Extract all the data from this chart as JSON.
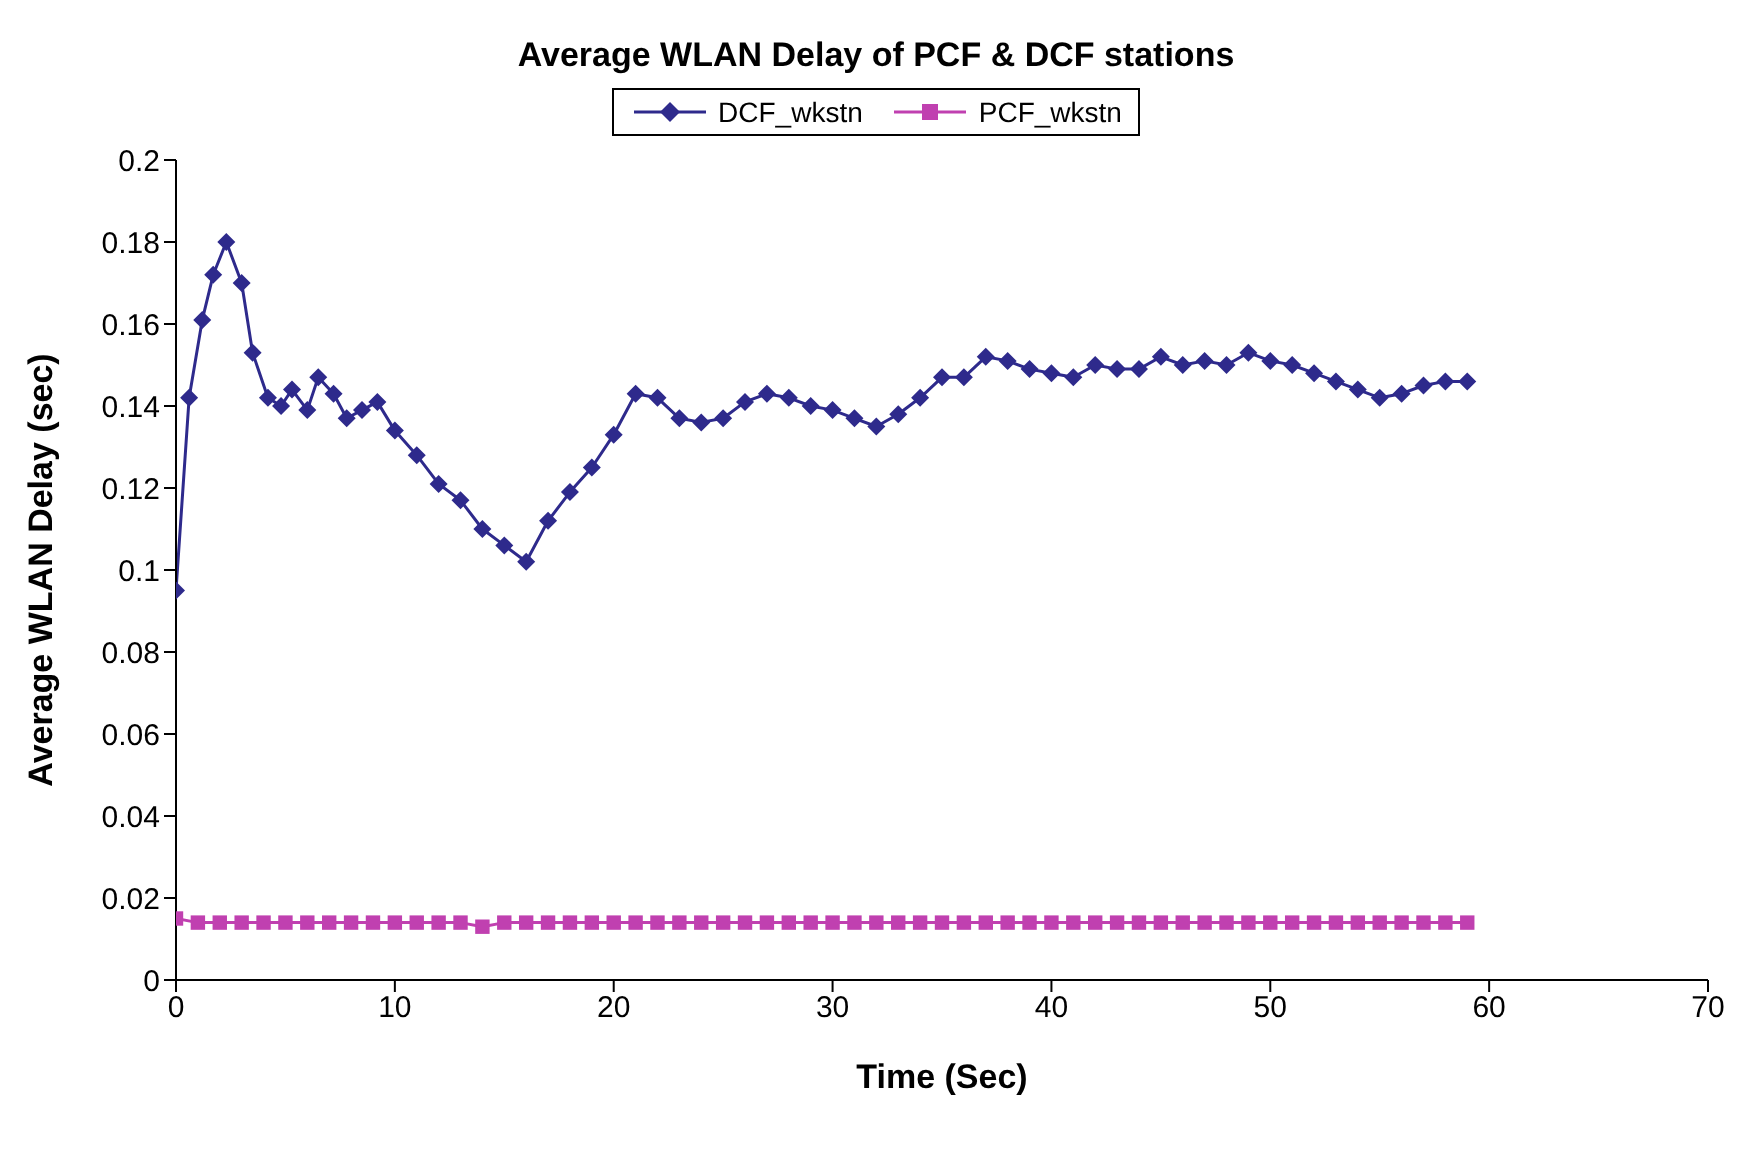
{
  "chart_data": {
    "type": "line",
    "title": "Average WLAN Delay of PCF & DCF stations",
    "xlabel": "Time (Sec)",
    "ylabel": "Average WLAN Delay (sec)",
    "xlim": [
      0,
      70
    ],
    "xticks": [
      0,
      10,
      20,
      30,
      40,
      50,
      60,
      70
    ],
    "ylim": [
      0,
      0.2
    ],
    "yticks": [
      0,
      0.02,
      0.04,
      0.06,
      0.08,
      0.1,
      0.12,
      0.14,
      0.16,
      0.18,
      0.2
    ],
    "grid": false,
    "legend": "top",
    "line_style": "solid",
    "series": [
      {
        "name": "DCF_wkstn",
        "color": "#2e2a8c",
        "marker": "diamond",
        "x": [
          0,
          0.6,
          1.2,
          1.7,
          2.3,
          3,
          3.5,
          4.2,
          4.8,
          5.3,
          6,
          6.5,
          7.2,
          7.8,
          8.5,
          9.2,
          10,
          11,
          12,
          13,
          14,
          15,
          16,
          17,
          18,
          19,
          20,
          21,
          22,
          23,
          24,
          25,
          26,
          27,
          28,
          29,
          30,
          31,
          32,
          33,
          34,
          35,
          36,
          37,
          38,
          39,
          40,
          41,
          42,
          43,
          44,
          45,
          46,
          47,
          48,
          49,
          50,
          51,
          52,
          53,
          54,
          55,
          56,
          57,
          58,
          59
        ],
        "values": [
          0.095,
          0.142,
          0.161,
          0.172,
          0.18,
          0.17,
          0.153,
          0.142,
          0.14,
          0.144,
          0.139,
          0.147,
          0.143,
          0.137,
          0.139,
          0.141,
          0.134,
          0.128,
          0.121,
          0.117,
          0.11,
          0.106,
          0.102,
          0.112,
          0.119,
          0.125,
          0.133,
          0.143,
          0.142,
          0.137,
          0.136,
          0.137,
          0.141,
          0.143,
          0.142,
          0.14,
          0.139,
          0.137,
          0.135,
          0.138,
          0.142,
          0.147,
          0.147,
          0.152,
          0.151,
          0.149,
          0.148,
          0.147,
          0.15,
          0.149,
          0.149,
          0.152,
          0.15,
          0.151,
          0.15,
          0.153,
          0.151,
          0.15,
          0.148,
          0.146,
          0.144,
          0.142,
          0.143,
          0.145,
          0.146,
          0.146
        ]
      },
      {
        "name": "PCF_wkstn",
        "color": "#c040b0",
        "marker": "square",
        "x": [
          0,
          1,
          2,
          3,
          4,
          5,
          6,
          7,
          8,
          9,
          10,
          11,
          12,
          13,
          14,
          15,
          16,
          17,
          18,
          19,
          20,
          21,
          22,
          23,
          24,
          25,
          26,
          27,
          28,
          29,
          30,
          31,
          32,
          33,
          34,
          35,
          36,
          37,
          38,
          39,
          40,
          41,
          42,
          43,
          44,
          45,
          46,
          47,
          48,
          49,
          50,
          51,
          52,
          53,
          54,
          55,
          56,
          57,
          58,
          59
        ],
        "values": [
          0.015,
          0.014,
          0.014,
          0.014,
          0.014,
          0.014,
          0.014,
          0.014,
          0.014,
          0.014,
          0.014,
          0.014,
          0.014,
          0.014,
          0.013,
          0.014,
          0.014,
          0.014,
          0.014,
          0.014,
          0.014,
          0.014,
          0.014,
          0.014,
          0.014,
          0.014,
          0.014,
          0.014,
          0.014,
          0.014,
          0.014,
          0.014,
          0.014,
          0.014,
          0.014,
          0.014,
          0.014,
          0.014,
          0.014,
          0.014,
          0.014,
          0.014,
          0.014,
          0.014,
          0.014,
          0.014,
          0.014,
          0.014,
          0.014,
          0.014,
          0.014,
          0.014,
          0.014,
          0.014,
          0.014,
          0.014,
          0.014,
          0.014,
          0.014,
          0.014
        ]
      }
    ]
  }
}
